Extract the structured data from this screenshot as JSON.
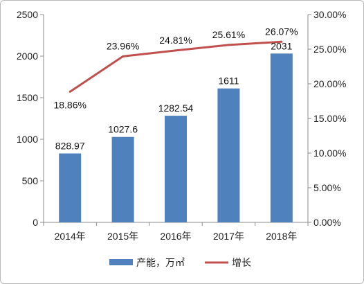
{
  "chart_data": {
    "type": "bar+line",
    "categories": [
      "2014年",
      "2015年",
      "2016年",
      "2017年",
      "2018年"
    ],
    "series": [
      {
        "name": "产能，万㎡",
        "type": "bar",
        "axis": "left",
        "values": [
          828.97,
          1027.6,
          1282.54,
          1611,
          2031
        ],
        "labels": [
          "828.97",
          "1027.6",
          "1282.54",
          "1611",
          "2031"
        ],
        "color": "#4f81bd"
      },
      {
        "name": "增长",
        "type": "line",
        "axis": "right",
        "values": [
          18.86,
          23.96,
          24.81,
          25.61,
          26.07
        ],
        "labels": [
          "18.86%",
          "23.96%",
          "24.81%",
          "25.61%",
          "26.07%"
        ],
        "color": "#c0504d"
      }
    ],
    "y_left": {
      "min": 0,
      "max": 2500,
      "ticks": [
        "0",
        "500",
        "1000",
        "1500",
        "2000",
        "2500"
      ]
    },
    "y_right": {
      "min": 0,
      "max": 30,
      "ticks": [
        "0.00%",
        "5.00%",
        "10.00%",
        "15.00%",
        "20.00%",
        "25.00%",
        "30.00%"
      ]
    },
    "legend_position": "bottom",
    "grid": false
  }
}
